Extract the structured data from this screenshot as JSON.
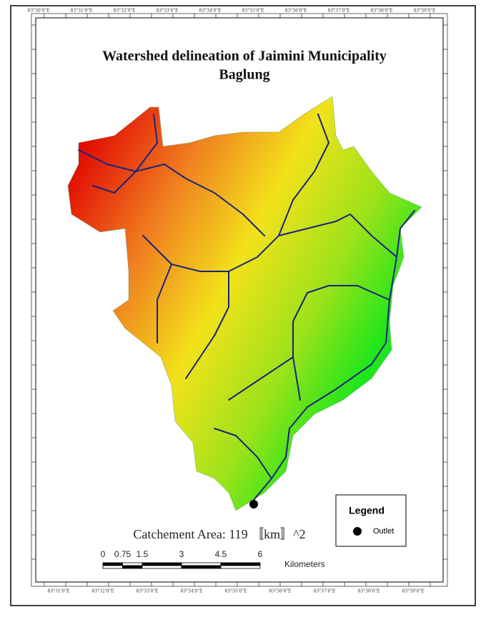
{
  "title": [
    "Watershed delineation of Jaimini Municipality",
    "Baglung"
  ],
  "top_labels": [
    "83°30'0\"E",
    "83°31'0\"E",
    "83°32'0\"E",
    "83°33'0\"E",
    "83°34'0\"E",
    "83°35'0\"E",
    "83°36'0\"E",
    "83°37'0\"E",
    "83°38'0\"E",
    "83°39'0\"E"
  ],
  "bottom_labels": [
    "83°31'0\"E",
    "83°32'0\"E",
    "83°33'0\"E",
    "83°34'0\"E",
    "83°35'0\"E",
    "83°36'0\"E",
    "83°37'0\"E",
    "83°38'0\"E",
    "83°39'0\"E"
  ],
  "catchment_text": "Catchement Area: 119 〚km〛^2",
  "scale_bar": {
    "ticks": [
      0,
      0.75,
      1.5,
      3,
      4.5,
      6
    ],
    "unit": "Kilometers"
  },
  "legend": {
    "title": "Legend",
    "items": [
      "Outlet"
    ]
  }
}
